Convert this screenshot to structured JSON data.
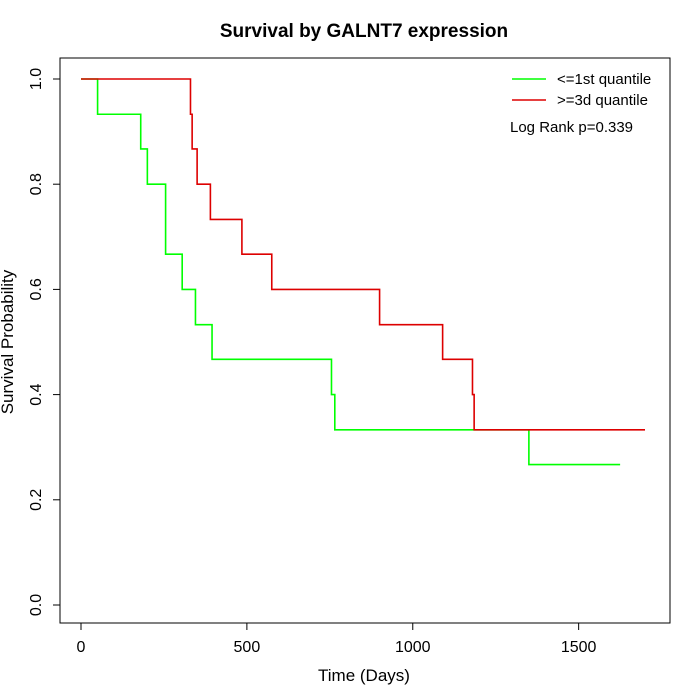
{
  "chart_data": {
    "type": "line",
    "subtype": "kaplan-meier",
    "title": "Survival by GALNT7 expression",
    "xlabel": "Time (Days)",
    "ylabel": "Survival Probability",
    "xlim": [
      0,
      1700
    ],
    "ylim": [
      0,
      1.0
    ],
    "xticks": [
      0,
      500,
      1000,
      1500
    ],
    "xtick_labels": [
      "0",
      "500",
      "1000",
      "1500"
    ],
    "yticks": [
      0.0,
      0.2,
      0.4,
      0.6,
      0.8,
      1.0
    ],
    "ytick_labels": [
      "0.0",
      "0.2",
      "0.4",
      "0.6",
      "0.8",
      "1.0"
    ],
    "legend_position": "top-right",
    "annotation": "Log Rank p=0.339",
    "series": [
      {
        "name": "<=1st quantile",
        "color": "#00ff00",
        "x": [
          0,
          50,
          180,
          200,
          255,
          305,
          345,
          395,
          755,
          765,
          1350,
          1625
        ],
        "y": [
          1.0,
          0.933,
          0.867,
          0.8,
          0.667,
          0.6,
          0.533,
          0.467,
          0.4,
          0.333,
          0.267,
          0.267
        ]
      },
      {
        "name": ">=3d quantile",
        "color": "#dd0000",
        "x": [
          0,
          330,
          335,
          350,
          390,
          485,
          575,
          900,
          1090,
          1180,
          1185,
          1700
        ],
        "y": [
          1.0,
          0.933,
          0.867,
          0.8,
          0.733,
          0.667,
          0.6,
          0.533,
          0.467,
          0.4,
          0.333,
          0.333
        ]
      }
    ]
  }
}
